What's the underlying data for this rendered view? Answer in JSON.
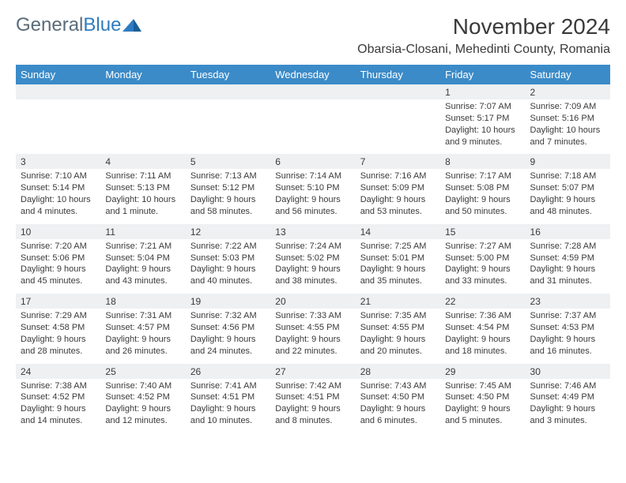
{
  "logo": {
    "text_gray": "General",
    "text_blue": "Blue"
  },
  "title": "November 2024",
  "location": "Obarsia-Closani, Mehedinti County, Romania",
  "colors": {
    "header_bg": "#3b8bc8",
    "header_text": "#ffffff",
    "daynum_bg": "#eef0f2",
    "text": "#3a3a3a",
    "logo_gray": "#5a6b7a",
    "logo_blue": "#2e7cc0",
    "page_bg": "#ffffff"
  },
  "fonts": {
    "month_title_size": 28,
    "location_size": 16,
    "weekday_size": 13,
    "daynum_size": 12,
    "body_size": 11
  },
  "weekdays": [
    "Sunday",
    "Monday",
    "Tuesday",
    "Wednesday",
    "Thursday",
    "Friday",
    "Saturday"
  ],
  "weeks": [
    [
      null,
      null,
      null,
      null,
      null,
      {
        "n": "1",
        "sunrise": "7:07 AM",
        "sunset": "5:17 PM",
        "daylight": "10 hours and 9 minutes."
      },
      {
        "n": "2",
        "sunrise": "7:09 AM",
        "sunset": "5:16 PM",
        "daylight": "10 hours and 7 minutes."
      }
    ],
    [
      {
        "n": "3",
        "sunrise": "7:10 AM",
        "sunset": "5:14 PM",
        "daylight": "10 hours and 4 minutes."
      },
      {
        "n": "4",
        "sunrise": "7:11 AM",
        "sunset": "5:13 PM",
        "daylight": "10 hours and 1 minute."
      },
      {
        "n": "5",
        "sunrise": "7:13 AM",
        "sunset": "5:12 PM",
        "daylight": "9 hours and 58 minutes."
      },
      {
        "n": "6",
        "sunrise": "7:14 AM",
        "sunset": "5:10 PM",
        "daylight": "9 hours and 56 minutes."
      },
      {
        "n": "7",
        "sunrise": "7:16 AM",
        "sunset": "5:09 PM",
        "daylight": "9 hours and 53 minutes."
      },
      {
        "n": "8",
        "sunrise": "7:17 AM",
        "sunset": "5:08 PM",
        "daylight": "9 hours and 50 minutes."
      },
      {
        "n": "9",
        "sunrise": "7:18 AM",
        "sunset": "5:07 PM",
        "daylight": "9 hours and 48 minutes."
      }
    ],
    [
      {
        "n": "10",
        "sunrise": "7:20 AM",
        "sunset": "5:06 PM",
        "daylight": "9 hours and 45 minutes."
      },
      {
        "n": "11",
        "sunrise": "7:21 AM",
        "sunset": "5:04 PM",
        "daylight": "9 hours and 43 minutes."
      },
      {
        "n": "12",
        "sunrise": "7:22 AM",
        "sunset": "5:03 PM",
        "daylight": "9 hours and 40 minutes."
      },
      {
        "n": "13",
        "sunrise": "7:24 AM",
        "sunset": "5:02 PM",
        "daylight": "9 hours and 38 minutes."
      },
      {
        "n": "14",
        "sunrise": "7:25 AM",
        "sunset": "5:01 PM",
        "daylight": "9 hours and 35 minutes."
      },
      {
        "n": "15",
        "sunrise": "7:27 AM",
        "sunset": "5:00 PM",
        "daylight": "9 hours and 33 minutes."
      },
      {
        "n": "16",
        "sunrise": "7:28 AM",
        "sunset": "4:59 PM",
        "daylight": "9 hours and 31 minutes."
      }
    ],
    [
      {
        "n": "17",
        "sunrise": "7:29 AM",
        "sunset": "4:58 PM",
        "daylight": "9 hours and 28 minutes."
      },
      {
        "n": "18",
        "sunrise": "7:31 AM",
        "sunset": "4:57 PM",
        "daylight": "9 hours and 26 minutes."
      },
      {
        "n": "19",
        "sunrise": "7:32 AM",
        "sunset": "4:56 PM",
        "daylight": "9 hours and 24 minutes."
      },
      {
        "n": "20",
        "sunrise": "7:33 AM",
        "sunset": "4:55 PM",
        "daylight": "9 hours and 22 minutes."
      },
      {
        "n": "21",
        "sunrise": "7:35 AM",
        "sunset": "4:55 PM",
        "daylight": "9 hours and 20 minutes."
      },
      {
        "n": "22",
        "sunrise": "7:36 AM",
        "sunset": "4:54 PM",
        "daylight": "9 hours and 18 minutes."
      },
      {
        "n": "23",
        "sunrise": "7:37 AM",
        "sunset": "4:53 PM",
        "daylight": "9 hours and 16 minutes."
      }
    ],
    [
      {
        "n": "24",
        "sunrise": "7:38 AM",
        "sunset": "4:52 PM",
        "daylight": "9 hours and 14 minutes."
      },
      {
        "n": "25",
        "sunrise": "7:40 AM",
        "sunset": "4:52 PM",
        "daylight": "9 hours and 12 minutes."
      },
      {
        "n": "26",
        "sunrise": "7:41 AM",
        "sunset": "4:51 PM",
        "daylight": "9 hours and 10 minutes."
      },
      {
        "n": "27",
        "sunrise": "7:42 AM",
        "sunset": "4:51 PM",
        "daylight": "9 hours and 8 minutes."
      },
      {
        "n": "28",
        "sunrise": "7:43 AM",
        "sunset": "4:50 PM",
        "daylight": "9 hours and 6 minutes."
      },
      {
        "n": "29",
        "sunrise": "7:45 AM",
        "sunset": "4:50 PM",
        "daylight": "9 hours and 5 minutes."
      },
      {
        "n": "30",
        "sunrise": "7:46 AM",
        "sunset": "4:49 PM",
        "daylight": "9 hours and 3 minutes."
      }
    ]
  ],
  "labels": {
    "sunrise": "Sunrise:",
    "sunset": "Sunset:",
    "daylight": "Daylight:"
  }
}
